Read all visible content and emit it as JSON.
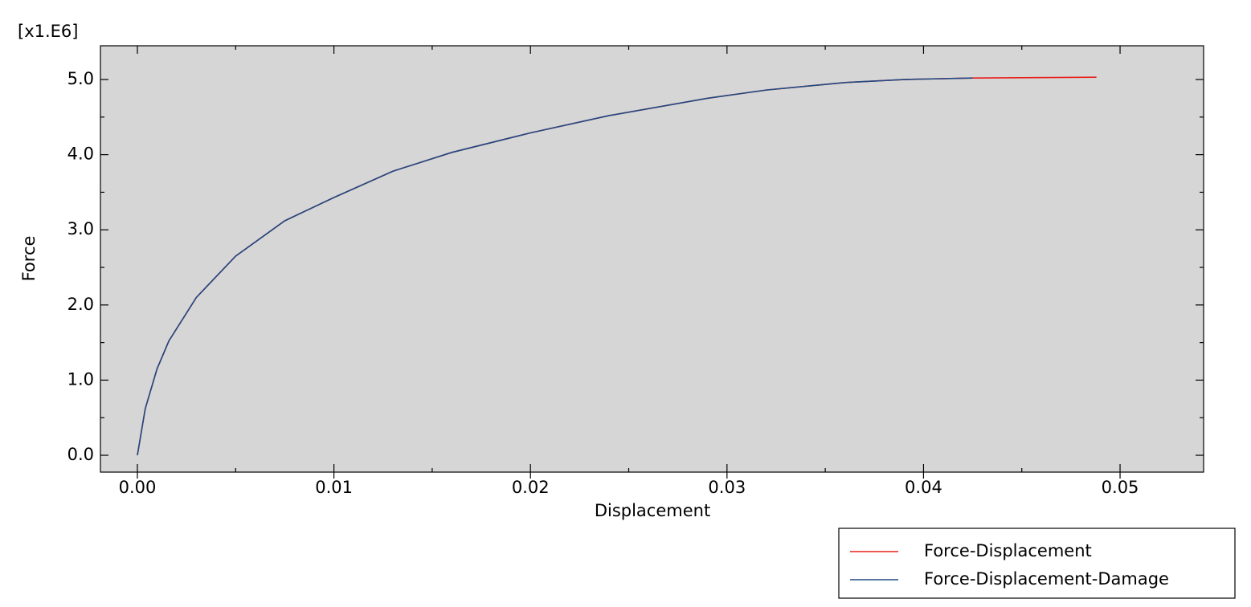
{
  "chart_data": {
    "type": "line",
    "multiplier_label": "[x1.E6]",
    "x_label": "Displacement",
    "y_label": "Force",
    "xlim": [
      -0.00188,
      0.05425
    ],
    "ylim": [
      -0.224,
      5.449
    ],
    "xticks": [
      {
        "value": 0,
        "label": "0.00"
      },
      {
        "value": 0.01,
        "label": "0.01"
      },
      {
        "value": 0.02,
        "label": "0.02"
      },
      {
        "value": 0.03,
        "label": "0.03"
      },
      {
        "value": 0.04,
        "label": "0.04"
      },
      {
        "value": 0.05,
        "label": "0.05"
      }
    ],
    "yticks": [
      {
        "value": 0,
        "label": "0.0"
      },
      {
        "value": 1,
        "label": "1.0"
      },
      {
        "value": 2,
        "label": "2.0"
      },
      {
        "value": 3,
        "label": "3.0"
      },
      {
        "value": 4,
        "label": "4.0"
      },
      {
        "value": 5,
        "label": "5.0"
      }
    ],
    "xminorticks": [
      0.005,
      0.015,
      0.025,
      0.035,
      0.045
    ],
    "yminorticks": [
      0.5,
      1.5,
      2.5,
      3.5,
      4.5
    ],
    "background": "#d6d6d6",
    "series": [
      {
        "name": "Force-Displacement",
        "color": "#e8201c",
        "x": [
          0,
          0.0004,
          0.001,
          0.0016,
          0.003,
          0.005,
          0.0075,
          0.01,
          0.013,
          0.016,
          0.02,
          0.024,
          0.029,
          0.032,
          0.036,
          0.039,
          0.0425,
          0.0488
        ],
        "values": [
          0,
          0.62,
          1.15,
          1.52,
          2.1,
          2.65,
          3.12,
          3.43,
          3.78,
          4.03,
          4.29,
          4.52,
          4.75,
          4.86,
          4.96,
          5.0,
          5.02,
          5.03
        ]
      },
      {
        "name": "Force-Displacement-Damage",
        "color": "#1f4a85",
        "x": [
          0,
          0.0004,
          0.001,
          0.0016,
          0.003,
          0.005,
          0.0075,
          0.01,
          0.013,
          0.016,
          0.02,
          0.024,
          0.029,
          0.032,
          0.036,
          0.039,
          0.0425
        ],
        "values": [
          0,
          0.62,
          1.15,
          1.52,
          2.1,
          2.65,
          3.12,
          3.43,
          3.78,
          4.03,
          4.29,
          4.52,
          4.75,
          4.86,
          4.96,
          5.0,
          5.02
        ]
      }
    ]
  }
}
